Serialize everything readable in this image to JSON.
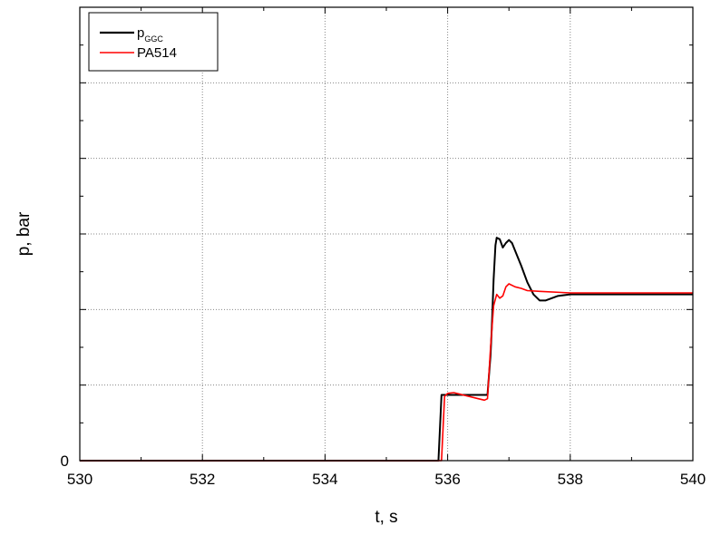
{
  "chart_data": {
    "type": "line",
    "xlabel": "t, s",
    "ylabel": "p, bar",
    "xlim": [
      530,
      540
    ],
    "ylim": [
      0,
      6
    ],
    "x_ticks": [
      "530",
      "532",
      "534",
      "536",
      "538",
      "540"
    ],
    "y_ticks": [
      "0"
    ],
    "grid": true,
    "legend_position": "top-left",
    "legend": {
      "items": [
        {
          "main": "p",
          "sub": "GGC",
          "color": "#000000"
        },
        {
          "main": "PA514",
          "sub": "",
          "color": "#ff0000"
        }
      ]
    },
    "series": [
      {
        "name": "pGGC",
        "color": "#000000",
        "points": [
          [
            530,
            0
          ],
          [
            535.85,
            0
          ],
          [
            535.9,
            0.87
          ],
          [
            536.0,
            0.87
          ],
          [
            536.3,
            0.87
          ],
          [
            536.6,
            0.87
          ],
          [
            536.65,
            0.87
          ],
          [
            536.7,
            1.4
          ],
          [
            536.72,
            1.75
          ],
          [
            536.75,
            2.4
          ],
          [
            536.78,
            2.85
          ],
          [
            536.8,
            2.95
          ],
          [
            536.85,
            2.93
          ],
          [
            536.9,
            2.82
          ],
          [
            536.95,
            2.88
          ],
          [
            537.0,
            2.92
          ],
          [
            537.05,
            2.88
          ],
          [
            537.1,
            2.78
          ],
          [
            537.2,
            2.58
          ],
          [
            537.3,
            2.36
          ],
          [
            537.4,
            2.2
          ],
          [
            537.5,
            2.12
          ],
          [
            537.6,
            2.12
          ],
          [
            537.8,
            2.18
          ],
          [
            538.0,
            2.2
          ],
          [
            540,
            2.2
          ]
        ]
      },
      {
        "name": "PA514",
        "color": "#ff0000",
        "points": [
          [
            530,
            0
          ],
          [
            535.9,
            0
          ],
          [
            535.95,
            0.85
          ],
          [
            536.0,
            0.89
          ],
          [
            536.1,
            0.9
          ],
          [
            536.2,
            0.88
          ],
          [
            536.35,
            0.85
          ],
          [
            536.5,
            0.82
          ],
          [
            536.6,
            0.8
          ],
          [
            536.65,
            0.82
          ],
          [
            536.7,
            1.5
          ],
          [
            536.75,
            2.05
          ],
          [
            536.8,
            2.2
          ],
          [
            536.85,
            2.15
          ],
          [
            536.9,
            2.18
          ],
          [
            536.95,
            2.3
          ],
          [
            537.0,
            2.34
          ],
          [
            537.1,
            2.3
          ],
          [
            537.2,
            2.28
          ],
          [
            537.3,
            2.25
          ],
          [
            537.5,
            2.24
          ],
          [
            538.0,
            2.22
          ],
          [
            539.0,
            2.22
          ],
          [
            540,
            2.22
          ]
        ]
      }
    ]
  }
}
